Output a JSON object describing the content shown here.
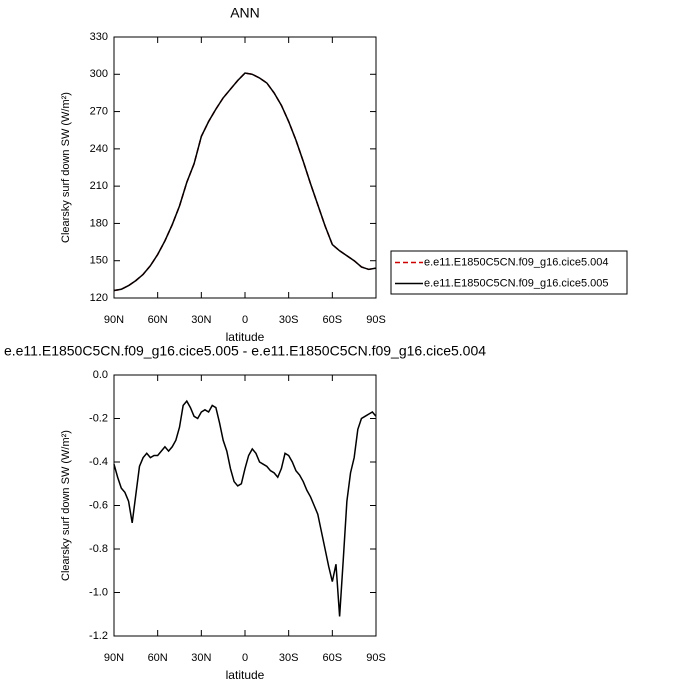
{
  "chart_data": [
    {
      "type": "line",
      "title": "ANN",
      "x_label": "latitude",
      "y_label": "Clearsky surf down SW (W/m²)",
      "x": [
        90,
        85,
        80,
        75,
        70,
        65,
        60,
        55,
        50,
        45,
        40,
        35,
        30,
        25,
        20,
        15,
        10,
        5,
        0,
        -5,
        -10,
        -15,
        -20,
        -25,
        -30,
        -35,
        -40,
        -45,
        -50,
        -55,
        -60,
        -65,
        -70,
        -75,
        -80,
        -85,
        -90
      ],
      "series": [
        {
          "name": "e.e11.E1850C5CN.f09_g16.cice5.004",
          "color": "#cc0000",
          "dash": "dashed",
          "values": [
            126,
            127,
            130,
            134,
            139,
            146,
            155,
            166,
            179,
            194,
            213,
            228,
            250,
            262,
            272,
            281,
            288,
            295,
            301,
            300,
            297,
            293,
            285,
            275,
            262,
            247,
            230,
            212,
            195,
            178,
            163,
            158,
            154,
            150,
            145,
            143,
            144
          ]
        },
        {
          "name": "e.e11.E1850C5CN.f09_g16.cice5.005",
          "color": "#000000",
          "dash": "solid",
          "values": [
            126,
            127,
            130,
            134,
            139,
            146,
            155,
            166,
            179,
            194,
            213,
            228,
            250,
            262,
            272,
            281,
            288,
            295,
            301,
            300,
            297,
            293,
            285,
            275,
            262,
            247,
            230,
            212,
            195,
            178,
            163,
            158,
            154,
            150,
            145,
            143,
            144
          ]
        }
      ],
      "xlim": [
        90,
        -90
      ],
      "xticks": [
        {
          "value": 90,
          "label": "90N"
        },
        {
          "value": 60,
          "label": "60N"
        },
        {
          "value": 30,
          "label": "30N"
        },
        0,
        {
          "value": -30,
          "label": "30S"
        },
        {
          "value": -60,
          "label": "60S"
        },
        {
          "value": -90,
          "label": "90S"
        }
      ],
      "ylim": [
        120,
        330
      ],
      "yticks": [
        120,
        150,
        180,
        210,
        240,
        270,
        300,
        330
      ],
      "legend": "right"
    },
    {
      "type": "line",
      "title": "e.e11.E1850C5CN.f09_g16.cice5.005 - e.e11.E1850C5CN.f09_g16.cice5.004",
      "x_label": "latitude",
      "y_label": "Clearsky surf down SW (W/m²)",
      "x": [
        90,
        87.5,
        85,
        82.5,
        80,
        77.5,
        75,
        72.5,
        70,
        67.5,
        65,
        62.5,
        60,
        57.5,
        55,
        52.5,
        50,
        47.5,
        45,
        42.5,
        40,
        37.5,
        35,
        32.5,
        30,
        27.5,
        25,
        22.5,
        20,
        17.5,
        15,
        12.5,
        10,
        7.5,
        5,
        2.5,
        0,
        -2.5,
        -5,
        -7.5,
        -10,
        -12.5,
        -15,
        -17.5,
        -20,
        -22.5,
        -25,
        -27.5,
        -30,
        -32.5,
        -35,
        -37.5,
        -40,
        -42.5,
        -45,
        -47.5,
        -50,
        -52.5,
        -55,
        -57.5,
        -60,
        -62.5,
        -65,
        -67.5,
        -70,
        -72.5,
        -75,
        -77.5,
        -80,
        -82.5,
        -85,
        -87.5,
        -90
      ],
      "values": [
        -0.41,
        -0.47,
        -0.52,
        -0.54,
        -0.58,
        -0.68,
        -0.55,
        -0.42,
        -0.38,
        -0.36,
        -0.38,
        -0.37,
        -0.37,
        -0.35,
        -0.33,
        -0.35,
        -0.33,
        -0.3,
        -0.24,
        -0.14,
        -0.12,
        -0.15,
        -0.19,
        -0.2,
        -0.17,
        -0.16,
        -0.17,
        -0.14,
        -0.15,
        -0.22,
        -0.3,
        -0.35,
        -0.43,
        -0.49,
        -0.51,
        -0.5,
        -0.43,
        -0.37,
        -0.34,
        -0.36,
        -0.4,
        -0.41,
        -0.42,
        -0.44,
        -0.45,
        -0.47,
        -0.43,
        -0.36,
        -0.37,
        -0.4,
        -0.44,
        -0.46,
        -0.49,
        -0.53,
        -0.56,
        -0.6,
        -0.64,
        -0.72,
        -0.8,
        -0.88,
        -0.95,
        -0.87,
        -1.11,
        -0.85,
        -0.58,
        -0.45,
        -0.38,
        -0.25,
        -0.2,
        -0.19,
        -0.18,
        -0.17,
        -0.19
      ],
      "color": "#000000",
      "xlim": [
        90,
        -90
      ],
      "xticks": [
        {
          "value": 90,
          "label": "90N"
        },
        {
          "value": 60,
          "label": "60N"
        },
        {
          "value": 30,
          "label": "30N"
        },
        0,
        {
          "value": -30,
          "label": "30S"
        },
        {
          "value": -60,
          "label": "60S"
        },
        {
          "value": -90,
          "label": "90S"
        }
      ],
      "ylim": [
        -1.2,
        0
      ],
      "yticks": [
        {
          "value": -1.2,
          "label": "-1.2"
        },
        {
          "value": -1,
          "label": "-1.0"
        },
        -0.8,
        -0.6,
        -0.4,
        -0.2,
        {
          "value": 0,
          "label": "0.0"
        }
      ]
    }
  ]
}
